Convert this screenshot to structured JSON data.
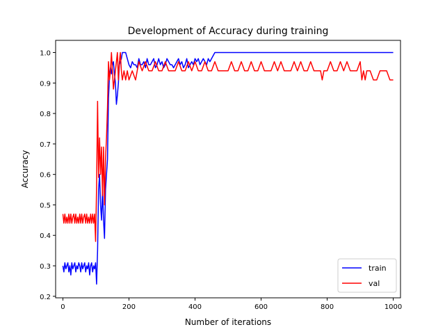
{
  "chart_data": {
    "type": "line",
    "title": "Development of Accuracy during training",
    "xlabel": "Number of iterations",
    "ylabel": "Accuracy",
    "xlim": [
      -22,
      1022
    ],
    "ylim": [
      0.195,
      1.04
    ],
    "xticks": [
      0,
      200,
      400,
      600,
      800,
      1000
    ],
    "yticks": [
      0.2,
      0.3,
      0.4,
      0.5,
      0.6,
      0.7,
      0.8,
      0.9,
      1.0
    ],
    "ytick_labels": [
      "0.2",
      "0.3",
      "0.4",
      "0.5",
      "0.6",
      "0.7",
      "0.8",
      "0.9",
      "1.0"
    ],
    "grid": false,
    "legend_position": "lower right",
    "series": [
      {
        "name": "train",
        "color": "#0000ff",
        "x": [
          0,
          3,
          6,
          9,
          12,
          15,
          18,
          21,
          24,
          27,
          30,
          33,
          36,
          39,
          42,
          45,
          48,
          51,
          54,
          57,
          60,
          63,
          66,
          69,
          72,
          75,
          78,
          81,
          84,
          87,
          90,
          93,
          96,
          99,
          102,
          105,
          108,
          111,
          114,
          117,
          120,
          123,
          126,
          129,
          132,
          135,
          138,
          141,
          144,
          147,
          150,
          153,
          156,
          159,
          162,
          165,
          168,
          171,
          174,
          177,
          180,
          185,
          190,
          195,
          200,
          205,
          210,
          215,
          220,
          225,
          230,
          235,
          240,
          245,
          250,
          255,
          260,
          265,
          270,
          275,
          280,
          285,
          290,
          295,
          300,
          305,
          310,
          315,
          320,
          325,
          330,
          335,
          340,
          345,
          350,
          355,
          360,
          365,
          370,
          375,
          380,
          385,
          390,
          395,
          400,
          405,
          410,
          415,
          420,
          425,
          430,
          435,
          440,
          445,
          450,
          455,
          460,
          470,
          500,
          600,
          700,
          800,
          900,
          1000
        ],
        "values": [
          0.3,
          0.28,
          0.31,
          0.29,
          0.3,
          0.31,
          0.28,
          0.3,
          0.27,
          0.31,
          0.29,
          0.3,
          0.31,
          0.28,
          0.3,
          0.29,
          0.31,
          0.3,
          0.28,
          0.31,
          0.29,
          0.3,
          0.31,
          0.28,
          0.3,
          0.29,
          0.31,
          0.27,
          0.3,
          0.31,
          0.28,
          0.3,
          0.29,
          0.31,
          0.24,
          0.35,
          0.55,
          0.6,
          0.5,
          0.45,
          0.55,
          0.45,
          0.39,
          0.55,
          0.6,
          0.65,
          0.85,
          0.92,
          0.95,
          0.93,
          0.96,
          0.97,
          0.93,
          0.9,
          0.83,
          0.86,
          0.9,
          0.96,
          0.97,
          0.98,
          1.0,
          1.0,
          1.0,
          0.98,
          0.96,
          0.95,
          0.97,
          0.96,
          0.96,
          0.95,
          0.98,
          0.96,
          0.96,
          0.97,
          0.95,
          0.98,
          0.96,
          0.96,
          0.97,
          0.98,
          0.95,
          0.96,
          0.98,
          0.96,
          0.97,
          0.95,
          0.96,
          0.98,
          0.97,
          0.96,
          0.96,
          0.95,
          0.96,
          0.97,
          0.98,
          0.96,
          0.97,
          0.95,
          0.96,
          0.98,
          0.95,
          0.96,
          0.97,
          0.96,
          0.98,
          0.97,
          0.98,
          0.96,
          0.97,
          0.98,
          0.97,
          0.96,
          0.98,
          0.97,
          0.98,
          0.99,
          1.0,
          1.0,
          1.0,
          1.0,
          1.0,
          1.0,
          1.0,
          1.0
        ]
      },
      {
        "name": "val",
        "color": "#ff0000",
        "x": [
          0,
          3,
          6,
          9,
          12,
          15,
          18,
          21,
          24,
          27,
          30,
          33,
          36,
          39,
          42,
          45,
          48,
          51,
          54,
          57,
          60,
          63,
          66,
          69,
          72,
          75,
          78,
          81,
          84,
          87,
          90,
          93,
          96,
          99,
          102,
          105,
          108,
          111,
          114,
          117,
          120,
          123,
          126,
          129,
          132,
          135,
          138,
          141,
          144,
          147,
          150,
          153,
          156,
          159,
          162,
          165,
          168,
          171,
          174,
          177,
          180,
          185,
          190,
          195,
          200,
          210,
          220,
          230,
          240,
          250,
          260,
          270,
          280,
          290,
          300,
          310,
          320,
          330,
          340,
          350,
          360,
          370,
          380,
          390,
          400,
          410,
          420,
          430,
          440,
          450,
          460,
          470,
          480,
          490,
          500,
          510,
          520,
          530,
          540,
          550,
          560,
          570,
          580,
          590,
          600,
          610,
          620,
          630,
          640,
          650,
          660,
          670,
          680,
          690,
          700,
          710,
          720,
          730,
          740,
          750,
          760,
          770,
          780,
          785,
          790,
          800,
          810,
          820,
          830,
          840,
          850,
          860,
          870,
          880,
          890,
          900,
          905,
          910,
          915,
          920,
          930,
          940,
          950,
          960,
          970,
          980,
          990,
          1000
        ],
        "values": [
          0.47,
          0.44,
          0.47,
          0.44,
          0.46,
          0.44,
          0.47,
          0.44,
          0.47,
          0.44,
          0.46,
          0.47,
          0.44,
          0.47,
          0.44,
          0.46,
          0.44,
          0.47,
          0.44,
          0.47,
          0.44,
          0.46,
          0.47,
          0.44,
          0.47,
          0.44,
          0.46,
          0.44,
          0.47,
          0.44,
          0.47,
          0.44,
          0.47,
          0.38,
          0.56,
          0.84,
          0.59,
          0.72,
          0.6,
          0.69,
          0.53,
          0.69,
          0.5,
          0.65,
          0.72,
          0.82,
          0.97,
          0.91,
          0.94,
          1.0,
          0.94,
          0.88,
          0.91,
          0.94,
          0.97,
          1.0,
          0.91,
          0.97,
          1.0,
          0.94,
          0.91,
          0.94,
          0.91,
          0.94,
          0.91,
          0.94,
          0.91,
          0.97,
          0.94,
          0.97,
          0.94,
          0.94,
          0.97,
          0.94,
          0.94,
          0.97,
          0.94,
          0.94,
          0.94,
          0.97,
          0.94,
          0.94,
          0.97,
          0.94,
          0.97,
          0.94,
          0.94,
          0.97,
          0.94,
          0.94,
          0.97,
          0.94,
          0.94,
          0.94,
          0.94,
          0.97,
          0.94,
          0.94,
          0.97,
          0.94,
          0.94,
          0.97,
          0.94,
          0.94,
          0.97,
          0.94,
          0.94,
          0.94,
          0.97,
          0.94,
          0.97,
          0.94,
          0.94,
          0.94,
          0.97,
          0.94,
          0.97,
          0.94,
          0.94,
          0.97,
          0.94,
          0.94,
          0.94,
          0.91,
          0.94,
          0.94,
          0.97,
          0.94,
          0.94,
          0.97,
          0.94,
          0.97,
          0.94,
          0.94,
          0.94,
          0.97,
          0.91,
          0.94,
          0.91,
          0.94,
          0.94,
          0.91,
          0.91,
          0.94,
          0.94,
          0.94,
          0.91,
          0.91
        ]
      }
    ]
  }
}
